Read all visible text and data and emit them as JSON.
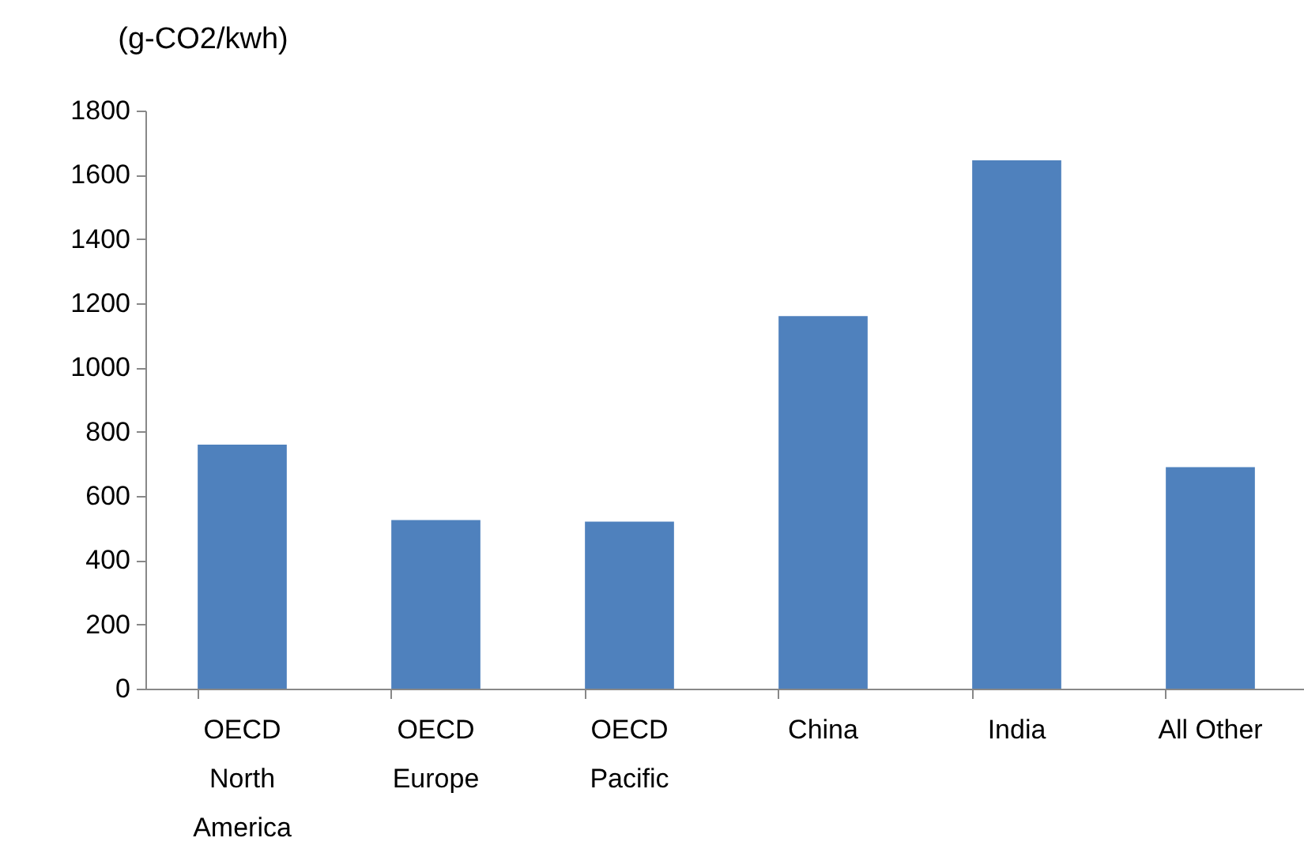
{
  "chart_data": {
    "type": "bar",
    "ylabel": "(g-CO2/kwh)",
    "categories": [
      "OECD North America",
      "OECD Europe",
      "OECD Pacific",
      "China",
      "India",
      "All Other"
    ],
    "values": [
      760,
      525,
      520,
      1160,
      1645,
      690
    ],
    "color": "#4f81bd",
    "ylim": [
      0,
      1800
    ],
    "yticks": [
      0,
      200,
      400,
      600,
      800,
      1000,
      1200,
      1400,
      1600,
      1800
    ],
    "grid": false
  }
}
